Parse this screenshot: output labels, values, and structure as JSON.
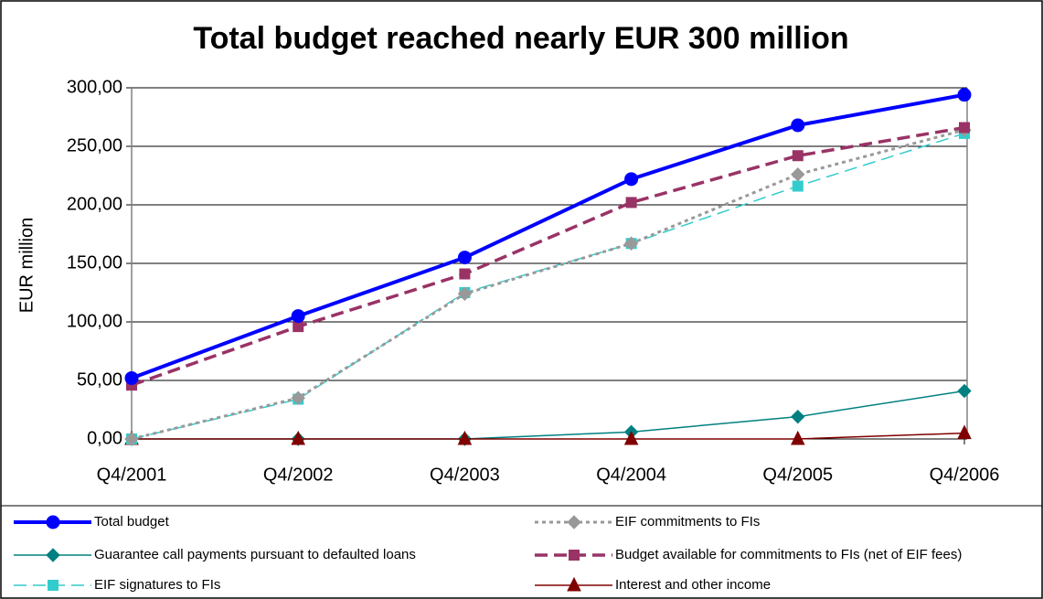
{
  "chart_data": {
    "type": "line",
    "title": "Total budget reached nearly EUR 300 million",
    "y_label": "EUR million",
    "categories": [
      "Q4/2001",
      "Q4/2002",
      "Q4/2003",
      "Q4/2004",
      "Q4/2005",
      "Q4/2006"
    ],
    "ylim": [
      0,
      300
    ],
    "yticks": [
      {
        "value": 0,
        "label": "0,00"
      },
      {
        "value": 50,
        "label": "50,00"
      },
      {
        "value": 100,
        "label": "100,00"
      },
      {
        "value": 150,
        "label": "150,00"
      },
      {
        "value": 200,
        "label": "200,00"
      },
      {
        "value": 250,
        "label": "250,00"
      },
      {
        "value": 300,
        "label": "300,00"
      }
    ],
    "grid": true,
    "legend": "bottom",
    "series": [
      {
        "name": "Total budget",
        "color": "#0000ff",
        "marker": "circle",
        "line_style": "solid",
        "width": 4,
        "values": [
          52,
          105,
          155,
          222,
          268,
          294
        ]
      },
      {
        "name": "EIF commitments to FIs",
        "color": "#999999",
        "marker": "diamond",
        "line_style": "dotted",
        "width": 3,
        "values": [
          0,
          35,
          124,
          167,
          226,
          264
        ]
      },
      {
        "name": "Guarantee call payments pursuant to defaulted loans",
        "color": "#008080",
        "marker": "diamond",
        "line_style": "solid",
        "width": 1.5,
        "values": [
          0,
          0,
          0,
          6,
          19,
          41
        ]
      },
      {
        "name": "Budget available for commitments to FIs (net of EIF fees)",
        "color": "#993366",
        "marker": "square",
        "line_style": "dashed",
        "width": 3.5,
        "values": [
          46,
          96,
          141,
          202,
          242,
          266
        ]
      },
      {
        "name": "EIF signatures to FIs",
        "color": "#33cccc",
        "marker": "square",
        "line_style": "dashed",
        "width": 1.5,
        "values": [
          0,
          34,
          125,
          167,
          216,
          261
        ]
      },
      {
        "name": "Interest and other income",
        "color": "#800000",
        "marker": "triangle",
        "line_style": "solid",
        "width": 1.5,
        "values": [
          0,
          0,
          0,
          0,
          0,
          5
        ]
      }
    ]
  }
}
